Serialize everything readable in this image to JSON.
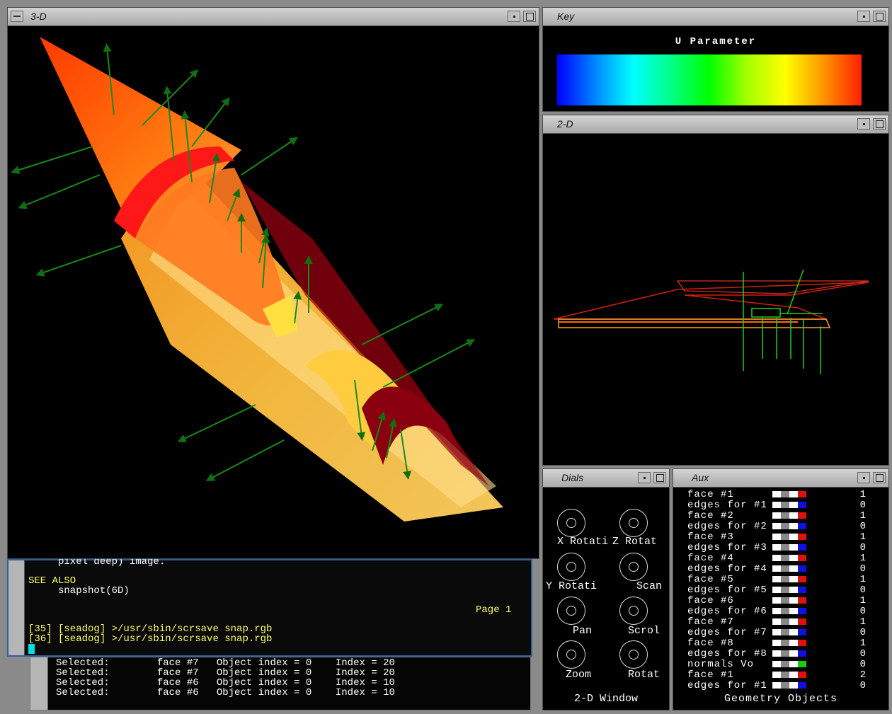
{
  "windows": {
    "three_d": {
      "title": "3-D"
    },
    "key": {
      "title": "Key",
      "label": "U Parameter"
    },
    "two_d": {
      "title": "2-D"
    },
    "dials": {
      "title": "Dials",
      "footer": "2-D Window",
      "items": [
        {
          "label": "X Rotati"
        },
        {
          "label": "Z Rotat"
        },
        {
          "label": "Y Rotati"
        },
        {
          "label": "Scan"
        },
        {
          "label": "Pan"
        },
        {
          "label": "Scrol"
        },
        {
          "label": "Zoom"
        },
        {
          "label": "Rotat"
        }
      ]
    },
    "aux": {
      "title": "Aux",
      "footer": "Geometry Objects",
      "rows": [
        {
          "label": "face #1",
          "value": "1"
        },
        {
          "label": "edges for #1",
          "value": "0"
        },
        {
          "label": "face #2",
          "value": "1"
        },
        {
          "label": "edges for #2",
          "value": "0"
        },
        {
          "label": "face #3",
          "value": "1"
        },
        {
          "label": "edges for #3",
          "value": "0"
        },
        {
          "label": "face #4",
          "value": "1"
        },
        {
          "label": "edges for #4",
          "value": "0"
        },
        {
          "label": "face #5",
          "value": "1"
        },
        {
          "label": "edges for #5",
          "value": "0"
        },
        {
          "label": "face #6",
          "value": "1"
        },
        {
          "label": "edges for #6",
          "value": "0"
        },
        {
          "label": "face #7",
          "value": "1"
        },
        {
          "label": "edges for #7",
          "value": "0"
        },
        {
          "label": "face #8",
          "value": "1"
        },
        {
          "label": "edges for #8",
          "value": "0"
        },
        {
          "label": "normals Vo",
          "value": "0"
        },
        {
          "label": "face #1",
          "value": "2"
        },
        {
          "label": "edges for #1",
          "value": "0"
        }
      ]
    }
  },
  "terminal": {
    "lines": [
      {
        "text": "     pixel deep) image.",
        "color": "#ffffff"
      },
      {
        "text": "SEE ALSO",
        "color": "#ffff66"
      },
      {
        "text": "     snapshot(6D)",
        "color": "#ffffff"
      },
      {
        "text": "Page 1",
        "color": "#ffff66"
      },
      {
        "text": "[35] [seadog] >/usr/sbin/scrsave snap.rgb",
        "color": "#ffff66"
      },
      {
        "text": "[36] [seadog] >/usr/sbin/scrsave snap.rgb",
        "color": "#ffff66"
      }
    ]
  },
  "log": {
    "lines": [
      "Selected:        face #7   Object index = 0    Index = 20",
      "Selected:        face #7   Object index = 0    Index = 20",
      "Selected:        face #6   Object index = 0    Index = 10",
      "Selected:        face #6   Object index = 0    Index = 10"
    ]
  },
  "colors": {
    "accent_green": "#1a8a1a",
    "surface_orange": "#ff8c00",
    "surface_red": "#d40000"
  }
}
